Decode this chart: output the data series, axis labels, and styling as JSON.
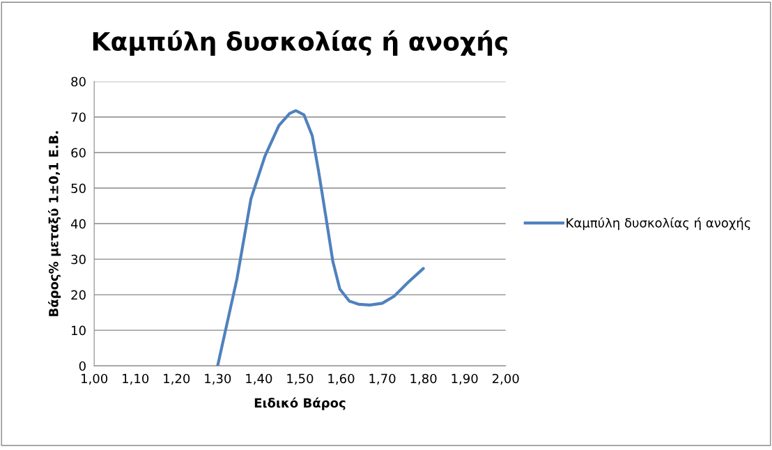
{
  "chart_data": {
    "type": "line",
    "title": "Καμπύλη δυσκολίας ή ανοχής",
    "xlabel": "Ειδικό Βάρος",
    "ylabel": "Βάρος% μεταξύ 1±0,1 Ε.Β.",
    "x": [
      1.3,
      1.347,
      1.381,
      1.415,
      1.449,
      1.475,
      1.49,
      1.51,
      1.53,
      1.545,
      1.563,
      1.58,
      1.597,
      1.62,
      1.644,
      1.67,
      1.7,
      1.729,
      1.763,
      1.8
    ],
    "series": [
      {
        "name": "Καμπύλη δυσκολίας ή ανοχής",
        "color": "#4f81bd",
        "values": [
          0,
          24.5,
          47,
          59,
          67.6,
          71,
          71.8,
          70.6,
          64.7,
          55,
          42,
          29.4,
          21.6,
          18.2,
          17.3,
          17.1,
          17.6,
          19.6,
          23.5,
          27.4
        ]
      }
    ],
    "xlim": [
      1.0,
      2.0
    ],
    "xticks": [
      {
        "value": 1.0,
        "label": "1,00"
      },
      {
        "value": 1.1,
        "label": "1,10"
      },
      {
        "value": 1.2,
        "label": "1,20"
      },
      {
        "value": 1.3,
        "label": "1,30"
      },
      {
        "value": 1.4,
        "label": "1,40"
      },
      {
        "value": 1.5,
        "label": "1,50"
      },
      {
        "value": 1.6,
        "label": "1,60"
      },
      {
        "value": 1.7,
        "label": "1,70"
      },
      {
        "value": 1.8,
        "label": "1,80"
      },
      {
        "value": 1.9,
        "label": "1,90"
      },
      {
        "value": 2.0,
        "label": "2,00"
      }
    ],
    "ylim": [
      0,
      80
    ],
    "yticks": [
      0,
      10,
      20,
      30,
      40,
      50,
      60,
      70,
      80
    ],
    "grid": "y",
    "legend": "right",
    "marker": "none",
    "line_style": "solid"
  }
}
